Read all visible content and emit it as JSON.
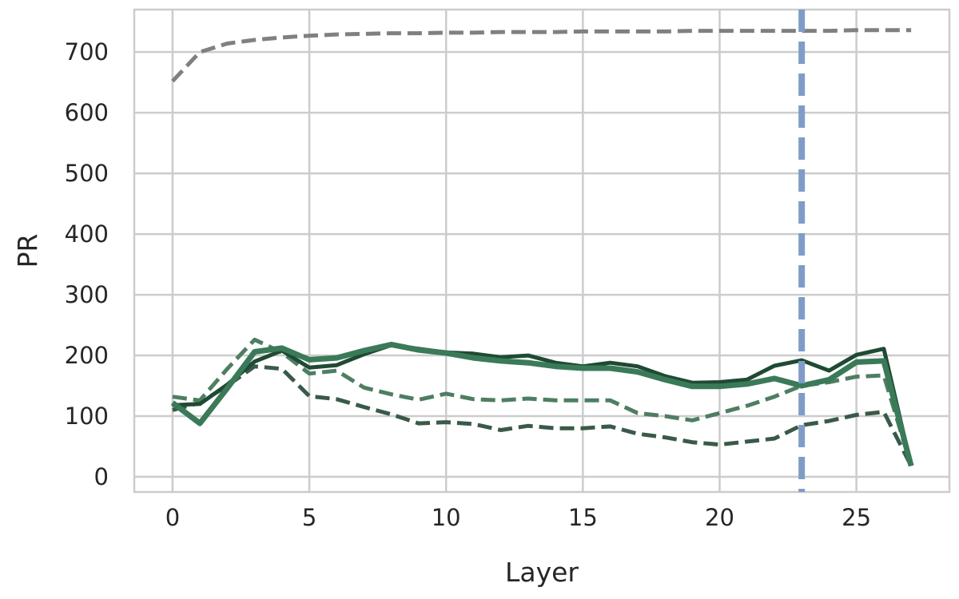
{
  "chart_data": {
    "type": "line",
    "xlabel": "Layer",
    "ylabel": "PR",
    "xlim": [
      -1.4,
      28.4
    ],
    "ylim": [
      -25,
      770
    ],
    "x_ticks": [
      0,
      5,
      10,
      15,
      20,
      25
    ],
    "y_ticks": [
      0,
      100,
      200,
      300,
      400,
      500,
      600,
      700
    ],
    "grid": true,
    "legend": "none",
    "x": [
      0,
      1,
      2,
      3,
      4,
      5,
      6,
      7,
      8,
      9,
      10,
      11,
      12,
      13,
      14,
      15,
      16,
      17,
      18,
      19,
      20,
      21,
      22,
      23,
      24,
      25,
      26,
      27
    ],
    "vertical_line": {
      "x": 23,
      "color": "#7f9cc8"
    },
    "series": [
      {
        "color": "#808080",
        "style": "dashed",
        "width": 5,
        "values": [
          652,
          700,
          714,
          720,
          724,
          727,
          729,
          730,
          731,
          731,
          732,
          732,
          733,
          733,
          733,
          734,
          734,
          734,
          734,
          735,
          735,
          735,
          735,
          735,
          735,
          736,
          736,
          736
        ]
      },
      {
        "color": "#3a5a48",
        "style": "dashed",
        "width": 5,
        "values": [
          110,
          122,
          150,
          182,
          178,
          133,
          128,
          115,
          103,
          88,
          90,
          87,
          77,
          84,
          80,
          80,
          83,
          71,
          65,
          57,
          53,
          58,
          63,
          85,
          92,
          102,
          107,
          18
        ]
      },
      {
        "color": "#4e7e62",
        "style": "dashed",
        "width": 5,
        "values": [
          132,
          126,
          178,
          226,
          205,
          170,
          175,
          147,
          136,
          127,
          137,
          128,
          126,
          129,
          126,
          126,
          126,
          105,
          100,
          93,
          105,
          117,
          132,
          150,
          156,
          165,
          167,
          18
        ]
      },
      {
        "color": "#1f4a33",
        "style": "solid",
        "width": 5,
        "values": [
          118,
          120,
          152,
          190,
          208,
          180,
          184,
          202,
          217,
          211,
          205,
          203,
          197,
          200,
          188,
          182,
          188,
          182,
          166,
          155,
          156,
          160,
          183,
          192,
          175,
          201,
          211,
          18
        ]
      },
      {
        "color": "#3a7a58",
        "style": "solid",
        "width": 7,
        "values": [
          122,
          88,
          146,
          206,
          212,
          193,
          196,
          208,
          218,
          209,
          204,
          196,
          191,
          188,
          182,
          179,
          179,
          173,
          160,
          149,
          149,
          153,
          162,
          150,
          160,
          189,
          191,
          18
        ]
      }
    ]
  }
}
